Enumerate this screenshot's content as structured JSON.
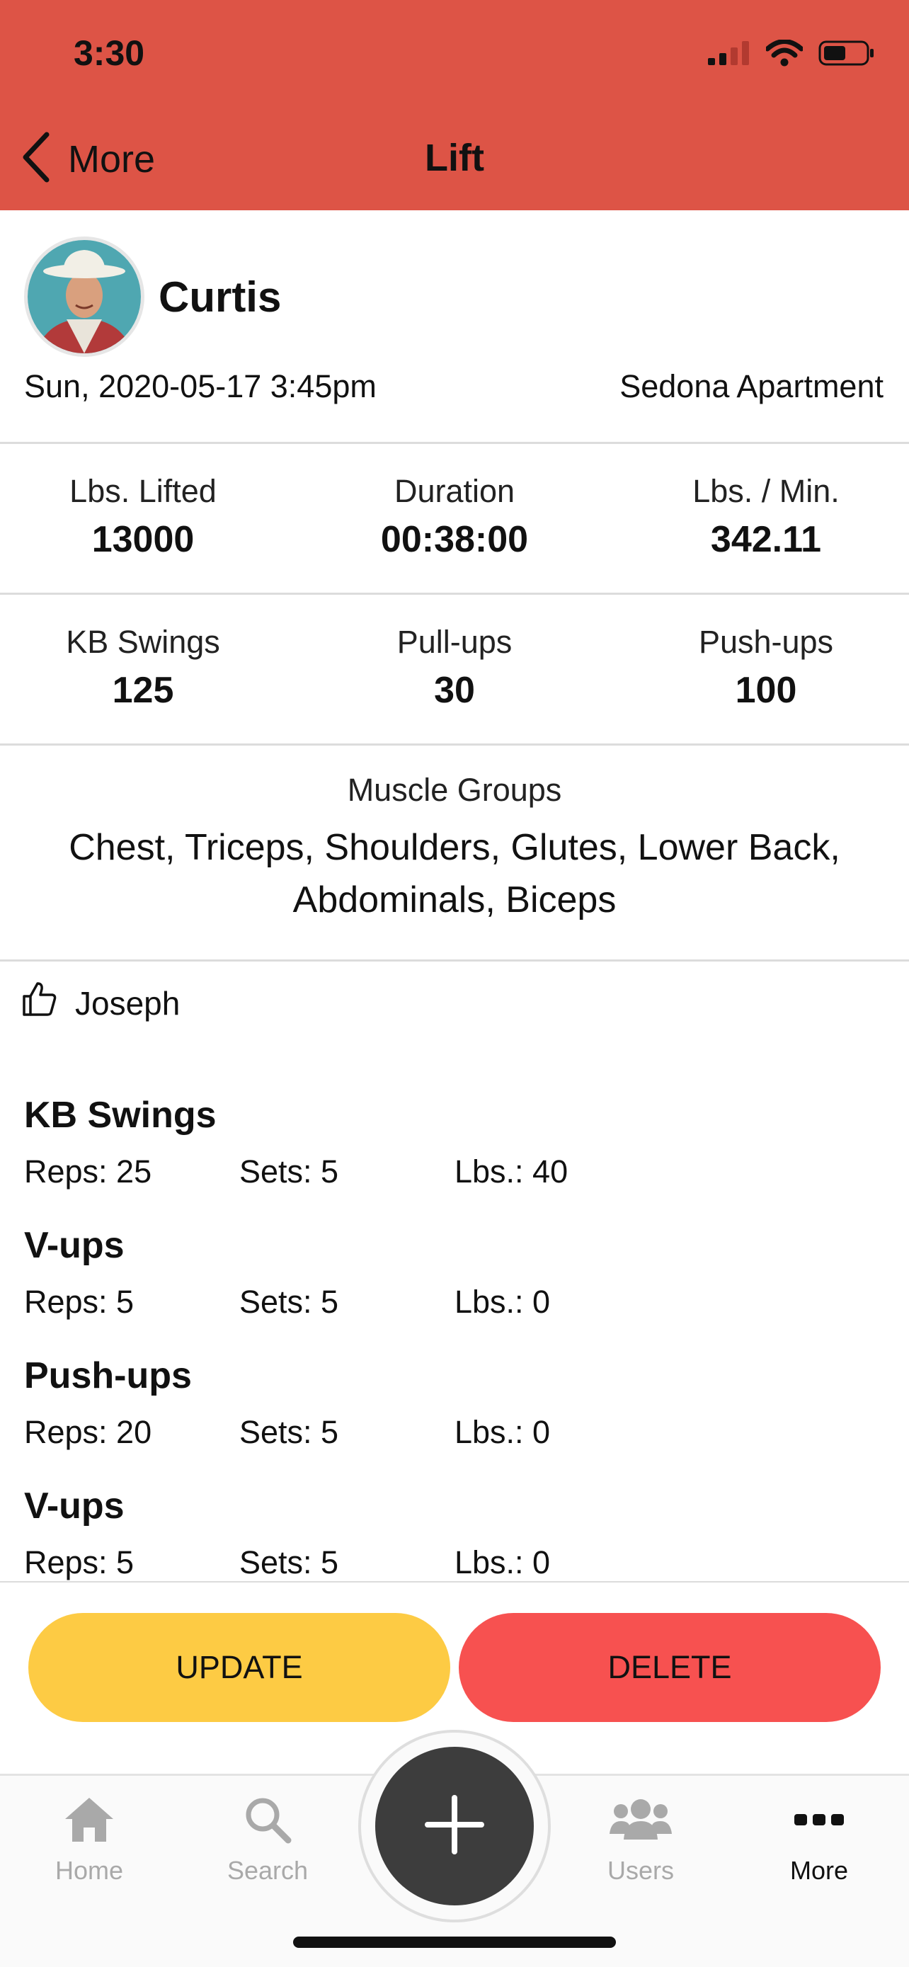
{
  "status_bar": {
    "time": "3:30"
  },
  "nav": {
    "back_label": "More",
    "title": "Lift"
  },
  "profile": {
    "name": "Curtis",
    "datetime": "Sun, 2020-05-17 3:45pm",
    "location": "Sedona Apartment"
  },
  "stats_primary": [
    {
      "label": "Lbs. Lifted",
      "value": "13000"
    },
    {
      "label": "Duration",
      "value": "00:38:00"
    },
    {
      "label": "Lbs. / Min.",
      "value": "342.11"
    }
  ],
  "stats_secondary": [
    {
      "label": "KB Swings",
      "value": "125"
    },
    {
      "label": "Pull-ups",
      "value": "30"
    },
    {
      "label": "Push-ups",
      "value": "100"
    }
  ],
  "muscle_groups": {
    "label": "Muscle Groups",
    "list": "Chest, Triceps, Shoulders, Glutes, Lower Back, Abdominals, Biceps"
  },
  "likes": {
    "user": "Joseph"
  },
  "exercises": [
    {
      "name": "KB Swings",
      "reps": "Reps: 25",
      "sets": "Sets: 5",
      "lbs": "Lbs.: 40"
    },
    {
      "name": "V-ups",
      "reps": "Reps: 5",
      "sets": "Sets: 5",
      "lbs": "Lbs.: 0"
    },
    {
      "name": "Push-ups",
      "reps": "Reps: 20",
      "sets": "Sets: 5",
      "lbs": "Lbs.: 0"
    },
    {
      "name": "V-ups",
      "reps": "Reps: 5",
      "sets": "Sets: 5",
      "lbs": "Lbs.: 0"
    }
  ],
  "actions": {
    "update_label": "UPDATE",
    "delete_label": "DELETE"
  },
  "tabs": [
    {
      "label": "Home",
      "icon": "home-icon"
    },
    {
      "label": "Search",
      "icon": "search-icon"
    },
    {
      "label": "Users",
      "icon": "users-icon"
    },
    {
      "label": "More",
      "icon": "more-icon"
    }
  ],
  "colors": {
    "header": "#dd5446",
    "update": "#fdcb44",
    "delete": "#f75150",
    "fab": "#3d3d3d"
  }
}
